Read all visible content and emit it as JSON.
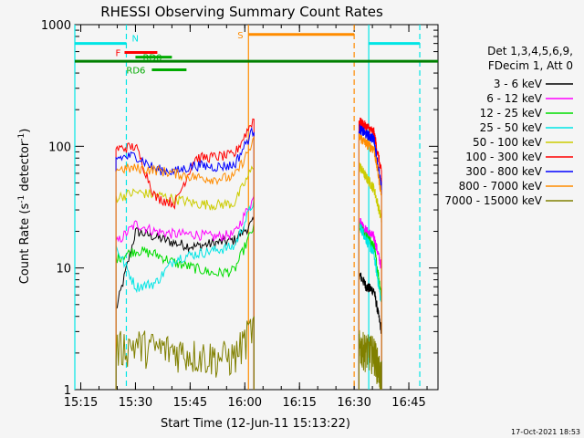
{
  "chart_data": {
    "type": "line",
    "title": "RHESSI Observing Summary Count Rates",
    "xlabel": "Start Time (12-Jun-11 15:13:22)",
    "ylabel_main": "Count Rate (s",
    "ylabel_sup1": "-1",
    "ylabel_mid": " detector",
    "ylabel_sup2": "-1",
    "ylabel_end": ")",
    "xlim": [
      "15:13:22",
      "16:53:00"
    ],
    "ylim": [
      1,
      1000
    ],
    "yscale": "log",
    "x_ticks": [
      "15:15",
      "15:30",
      "15:45",
      "16:00",
      "16:15",
      "16:30",
      "16:45"
    ],
    "y_ticks": [
      "1",
      "10",
      "100",
      "1000"
    ],
    "legend_header": [
      "Det 1,3,4,5,6,9,",
      "FDecim 1, Att 0"
    ],
    "legend_placement": "right",
    "series": [
      {
        "name": "3 - 6 keV",
        "color": "#000000",
        "seg1": [
          4.5,
          20,
          18,
          16,
          15,
          16,
          17,
          24
        ],
        "seg2": [
          9,
          7,
          6.5,
          3
        ]
      },
      {
        "name": "6 - 12 keV",
        "color": "#ff00ff",
        "seg1": [
          16,
          23,
          20,
          19,
          19,
          18,
          19,
          38
        ],
        "seg2": [
          25,
          20,
          18,
          10
        ]
      },
      {
        "name": "12 - 25 keV",
        "color": "#00dd00",
        "seg1": [
          12,
          14,
          13,
          11,
          10,
          9,
          9.5,
          22
        ],
        "seg2": [
          22,
          18,
          15,
          6
        ]
      },
      {
        "name": "25 - 50 keV",
        "color": "#00e5e5",
        "seg1": [
          15,
          7,
          7.5,
          12,
          13,
          14,
          15,
          36
        ],
        "seg2": [
          23,
          17,
          13,
          5
        ]
      },
      {
        "name": "50 - 100 keV",
        "color": "#cccc00",
        "seg1": [
          38,
          42,
          40,
          37,
          34,
          33,
          34,
          70
        ],
        "seg2": [
          70,
          55,
          45,
          25
        ]
      },
      {
        "name": "100 - 300 keV",
        "color": "#ff0000",
        "seg1": [
          95,
          100,
          38,
          34,
          80,
          82,
          85,
          170
        ],
        "seg2": [
          160,
          145,
          130,
          60
        ]
      },
      {
        "name": "300 - 800 keV",
        "color": "#0000ff",
        "seg1": [
          80,
          84,
          65,
          62,
          70,
          68,
          70,
          140
        ],
        "seg2": [
          140,
          125,
          115,
          45
        ]
      },
      {
        "name": "800 - 7000 keV",
        "color": "#ff8c00",
        "seg1": [
          65,
          66,
          64,
          60,
          56,
          54,
          56,
          110
        ],
        "seg2": [
          120,
          105,
          95,
          40
        ]
      },
      {
        "name": "7000 - 15000 keV",
        "color": "#808000",
        "seg1": [
          2.6,
          2.8,
          2.6,
          2.5,
          2.3,
          2.2,
          2.2,
          4
        ],
        "seg2": [
          2.7,
          2.5,
          2.4,
          1.5
        ]
      }
    ],
    "series_time_ranges": {
      "seg1": [
        "15:24:40",
        "16:02:30"
      ],
      "seg2": [
        "16:31:20",
        "16:37:30"
      ]
    },
    "annotations": {
      "N": {
        "label": "N",
        "color": "#00e5e5",
        "ranges": [
          [
            "15:13:22",
            "15:27:30"
          ],
          [
            "16:34:00",
            "16:48:00"
          ]
        ],
        "level": 700
      },
      "F": {
        "label": "F",
        "color": "#ff0000",
        "range": [
          "15:27:00",
          "15:36:00"
        ],
        "level": 590
      },
      "RD0": {
        "label": "RD0",
        "color": "#00aa00",
        "range": [
          "15:30:00",
          "15:40:00"
        ],
        "level": 540
      },
      "RD6": {
        "label": "RD6",
        "color": "#00aa00",
        "range": [
          "15:34:30",
          "15:44:00"
        ],
        "level": 425
      },
      "S": {
        "label": "S",
        "color": "#ff8c00",
        "range": [
          "16:01:00",
          "16:30:00"
        ],
        "level": 830
      },
      "green_line": {
        "range": [
          "15:13:22",
          "16:53:00"
        ],
        "level": 500,
        "color": "#008000"
      }
    },
    "vertical_markers": [
      {
        "time": "15:13:22",
        "color": "#00e5e5",
        "style": "solid"
      },
      {
        "time": "15:27:30",
        "color": "#00e5e5",
        "style": "dashed"
      },
      {
        "time": "16:01:00",
        "color": "#ff8c00",
        "style": "solid"
      },
      {
        "time": "16:30:00",
        "color": "#ff8c00",
        "style": "dashed"
      },
      {
        "time": "16:34:00",
        "color": "#00e5e5",
        "style": "solid"
      },
      {
        "time": "16:48:00",
        "color": "#00e5e5",
        "style": "dashed"
      }
    ],
    "footer_timestamp": "17-Oct-2021 18:53"
  }
}
